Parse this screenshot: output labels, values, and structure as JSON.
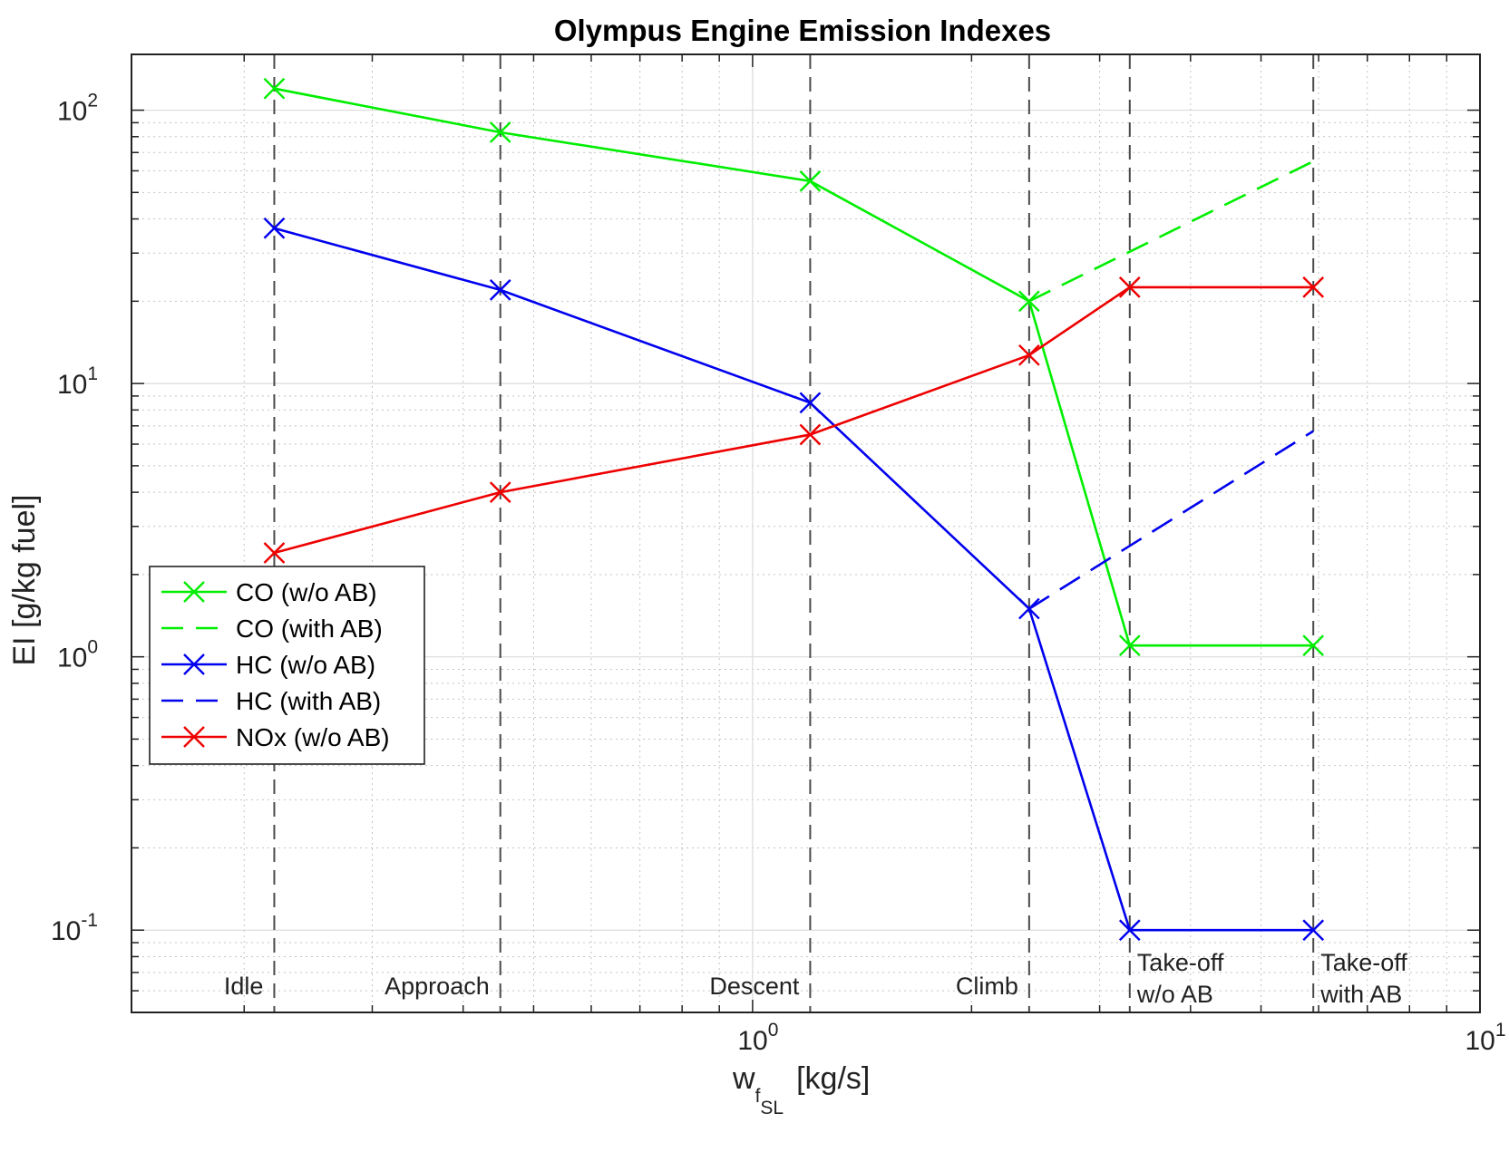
{
  "chart_data": {
    "type": "line",
    "title": "Olympus Engine Emission Indexes",
    "xlabel": "w",
    "xlabel_sub": "f",
    "xlabel_subsub": "SL",
    "xlabel_unit": "[kg/s]",
    "ylabel": "EI [g/kg fuel]",
    "xscale": "log",
    "yscale": "log",
    "xlim": [
      0.14,
      10
    ],
    "ylim": [
      0.05,
      160
    ],
    "grid": true,
    "x_ticks": [
      {
        "value": 1,
        "base": "10",
        "exp": "0"
      },
      {
        "value": 10,
        "base": "10",
        "exp": "1"
      }
    ],
    "y_ticks": [
      {
        "value": 0.1,
        "base": "10",
        "exp": "-1"
      },
      {
        "value": 1,
        "base": "10",
        "exp": "0"
      },
      {
        "value": 10,
        "base": "10",
        "exp": "1"
      },
      {
        "value": 100,
        "base": "10",
        "exp": "2"
      }
    ],
    "phases": [
      {
        "x": 0.22,
        "lines": [
          "Idle"
        ],
        "align": "end",
        "color": "#000000"
      },
      {
        "x": 0.45,
        "lines": [
          "Approach"
        ],
        "align": "end",
        "color": "#4a4a4a"
      },
      {
        "x": 1.2,
        "lines": [
          "Descent"
        ],
        "align": "end",
        "color": "#4a4a4a"
      },
      {
        "x": 2.4,
        "lines": [
          "Climb"
        ],
        "align": "end",
        "color": "#4a4a4a"
      },
      {
        "x": 3.3,
        "lines": [
          "Take-off",
          "w/o AB"
        ],
        "align": "start",
        "color": "#cccccc"
      },
      {
        "x": 5.9,
        "lines": [
          "Take-off",
          "with AB"
        ],
        "align": "start",
        "color": "#4a4a4a"
      }
    ],
    "series": [
      {
        "name": "CO (w/o AB)",
        "color": "#00ee00",
        "style": "solid",
        "marker": "x",
        "x": [
          0.22,
          0.45,
          1.2,
          2.4,
          3.3,
          5.9
        ],
        "y": [
          120,
          83,
          55,
          20,
          1.1,
          1.1
        ]
      },
      {
        "name": "CO (with AB)",
        "color": "#00ee00",
        "style": "dashed",
        "marker": "none",
        "x": [
          2.4,
          5.9
        ],
        "y": [
          20,
          65
        ]
      },
      {
        "name": "HC (w/o AB)",
        "color": "#0000ee",
        "style": "solid",
        "marker": "x",
        "x": [
          0.22,
          0.45,
          1.2,
          2.4,
          3.3,
          5.9
        ],
        "y": [
          37,
          22,
          8.5,
          1.5,
          0.1,
          0.1
        ]
      },
      {
        "name": "HC (with AB)",
        "color": "#0000ee",
        "style": "dashed",
        "marker": "none",
        "x": [
          2.4,
          5.9
        ],
        "y": [
          1.5,
          6.7
        ]
      },
      {
        "name": "NOx (w/o AB)",
        "color": "#ee0000",
        "style": "solid",
        "marker": "x",
        "x": [
          0.22,
          0.45,
          1.2,
          2.4,
          3.3,
          5.9
        ],
        "y": [
          2.4,
          4.0,
          6.5,
          12.7,
          22.5,
          22.5
        ]
      }
    ],
    "legend_position": "middle-left"
  }
}
